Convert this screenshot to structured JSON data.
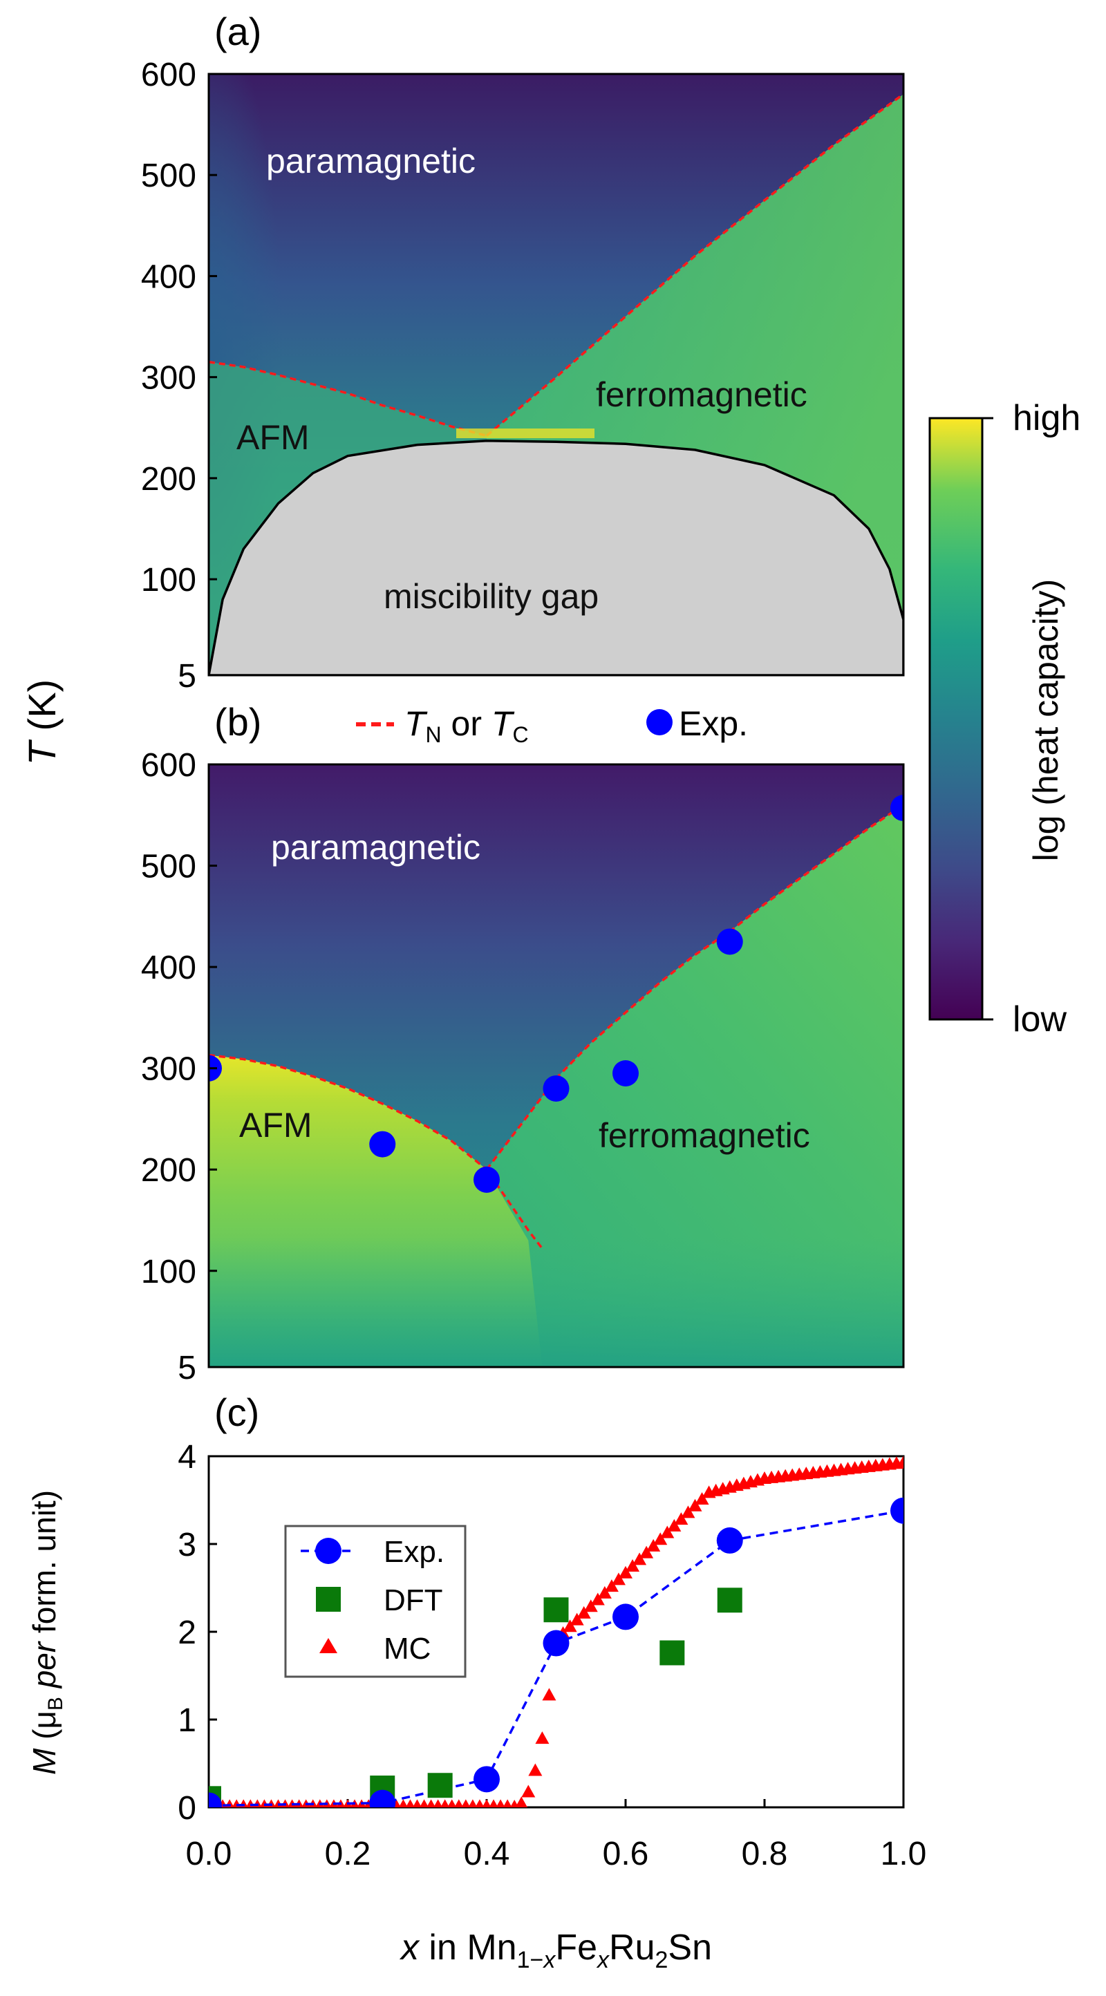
{
  "chart_data": [
    {
      "panel": "a",
      "type": "heatmap",
      "panel_label": "(a)",
      "xlim": [
        0,
        1
      ],
      "ylim": [
        5,
        600
      ],
      "y_ticks": [
        "600",
        "500",
        "400",
        "300",
        "200",
        "100",
        "5"
      ],
      "y_tick_values": [
        600,
        500,
        400,
        300,
        200,
        100,
        5
      ],
      "regions": [
        "paramagnetic",
        "ferromagnetic",
        "AFM",
        "miscibility gap"
      ],
      "transition_line": {
        "afm_branch": [
          [
            0,
            315
          ],
          [
            0.05,
            310
          ],
          [
            0.1,
            302
          ],
          [
            0.15,
            293
          ],
          [
            0.2,
            284
          ],
          [
            0.25,
            272
          ],
          [
            0.3,
            262
          ],
          [
            0.35,
            251
          ],
          [
            0.4,
            242
          ]
        ],
        "fm_branch": [
          [
            0.4,
            242
          ],
          [
            0.5,
            300
          ],
          [
            0.6,
            360
          ],
          [
            0.7,
            420
          ],
          [
            0.8,
            475
          ],
          [
            0.9,
            530
          ],
          [
            1.0,
            580
          ]
        ]
      },
      "miscibility_gap": [
        [
          0,
          5
        ],
        [
          0.02,
          80
        ],
        [
          0.05,
          130
        ],
        [
          0.1,
          175
        ],
        [
          0.15,
          205
        ],
        [
          0.2,
          222
        ],
        [
          0.3,
          233
        ],
        [
          0.4,
          237
        ],
        [
          0.5,
          236
        ],
        [
          0.6,
          234
        ],
        [
          0.7,
          228
        ],
        [
          0.8,
          213
        ],
        [
          0.9,
          183
        ],
        [
          0.95,
          150
        ],
        [
          0.98,
          110
        ],
        [
          1.0,
          60
        ],
        [
          1.0,
          5
        ]
      ]
    },
    {
      "panel": "b",
      "type": "heatmap",
      "panel_label": "(b)",
      "xlim": [
        0,
        1
      ],
      "ylim": [
        5,
        600
      ],
      "y_ticks": [
        "600",
        "500",
        "400",
        "300",
        "200",
        "100",
        "5"
      ],
      "y_tick_values": [
        600,
        500,
        400,
        300,
        200,
        100,
        5
      ],
      "regions": [
        "paramagnetic",
        "AFM",
        "ferromagnetic"
      ],
      "tn_line": [
        [
          0,
          313
        ],
        [
          0.05,
          309
        ],
        [
          0.1,
          302
        ],
        [
          0.15,
          292
        ],
        [
          0.2,
          280
        ],
        [
          0.25,
          265
        ],
        [
          0.3,
          248
        ],
        [
          0.35,
          228
        ],
        [
          0.4,
          200
        ],
        [
          0.43,
          170
        ],
        [
          0.46,
          140
        ],
        [
          0.48,
          122
        ]
      ],
      "tc_line": [
        [
          0.4,
          200
        ],
        [
          0.45,
          245
        ],
        [
          0.5,
          290
        ],
        [
          0.55,
          325
        ],
        [
          0.6,
          355
        ],
        [
          0.65,
          385
        ],
        [
          0.7,
          412
        ],
        [
          0.75,
          435
        ],
        [
          0.8,
          462
        ],
        [
          0.85,
          487
        ],
        [
          0.9,
          512
        ],
        [
          0.95,
          537
        ],
        [
          1.0,
          560
        ]
      ],
      "exp_points": [
        [
          0,
          300
        ],
        [
          0.25,
          225
        ],
        [
          0.4,
          190
        ],
        [
          0.5,
          280
        ],
        [
          0.6,
          295
        ],
        [
          0.75,
          425
        ],
        [
          1.0,
          557
        ]
      ]
    },
    {
      "panel": "c",
      "type": "scatter",
      "panel_label": "(c)",
      "xlabel_parts": {
        "x": "x",
        "in": " in Mn",
        "sub1": "1−",
        "subx": "x",
        "fe": "Fe",
        "subx2": "x",
        "ru": "Ru",
        "sub2": "2",
        "sn": "Sn"
      },
      "ylabel_parts": {
        "M": "M",
        "open": " (μ",
        "sub": "B",
        "per": "per",
        "rest": " form. unit)"
      },
      "xlim": [
        0,
        1
      ],
      "ylim": [
        0,
        4
      ],
      "x_ticks": [
        "0.0",
        "0.2",
        "0.4",
        "0.6",
        "0.8",
        "1.0"
      ],
      "x_tick_values": [
        0,
        0.2,
        0.4,
        0.6,
        0.8,
        1.0
      ],
      "y_ticks": [
        "4",
        "3",
        "2",
        "1",
        "0"
      ],
      "y_tick_values": [
        4,
        3,
        2,
        1,
        0
      ],
      "series": [
        {
          "name": "Exp.",
          "marker": "circle",
          "color": "#0000ff",
          "line": "dashed",
          "points": [
            [
              0,
              0.02
            ],
            [
              0.25,
              0.05
            ],
            [
              0.4,
              0.32
            ],
            [
              0.5,
              1.87
            ],
            [
              0.6,
              2.17
            ],
            [
              0.75,
              3.04
            ],
            [
              1.0,
              3.38
            ]
          ]
        },
        {
          "name": "DFT",
          "marker": "square",
          "color": "#0a7a0a",
          "points": [
            [
              0,
              0.1
            ],
            [
              0.25,
              0.22
            ],
            [
              0.333,
              0.25
            ],
            [
              0.5,
              2.25
            ],
            [
              0.667,
              1.76
            ],
            [
              0.75,
              2.36
            ]
          ]
        },
        {
          "name": "MC",
          "marker": "triangle",
          "color": "#ff0000",
          "x_start": 0,
          "x_end": 1.0,
          "x_step": 0.01
        }
      ]
    }
  ],
  "shared": {
    "y_axis_label_T": "T",
    "y_axis_label_unit": " (K)",
    "legend_line_T": "T",
    "legend_sub_N": "N",
    "legend_or": " or ",
    "legend_sub_C": "C",
    "legend_exp": "Exp.",
    "colorbar_title": "log (heat capacity)",
    "colorbar_high": "high",
    "colorbar_low": "low"
  },
  "colors": {
    "tn_tc_line": "#ff1a1a",
    "exp_marker": "#0000ff",
    "miscibility_fill": "#cfcfcf"
  }
}
